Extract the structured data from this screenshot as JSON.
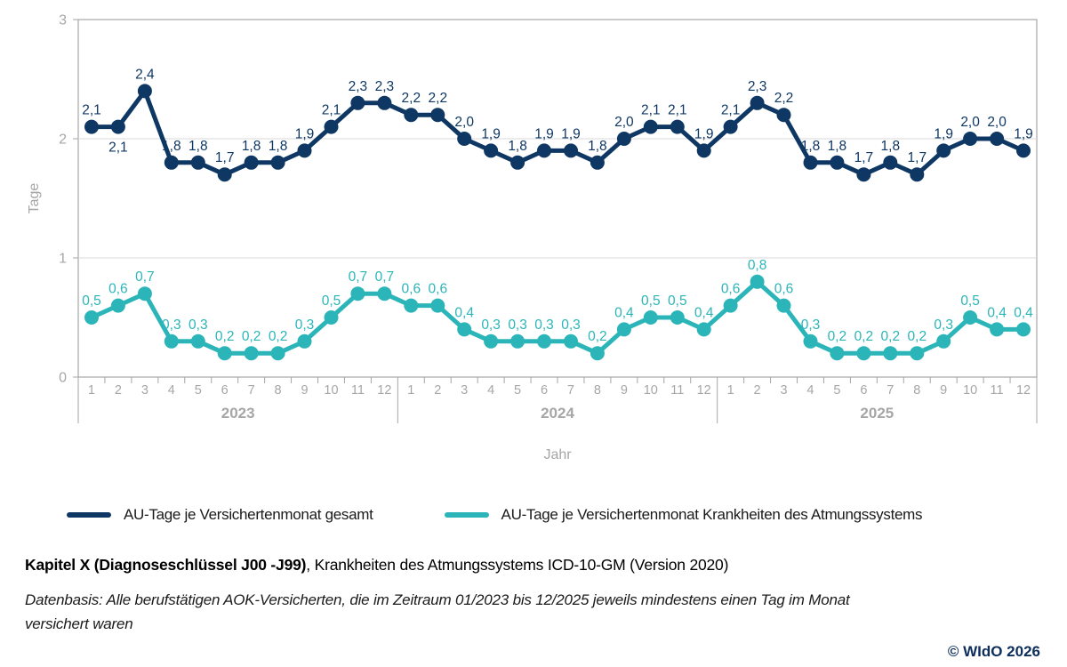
{
  "chart_data": {
    "type": "line",
    "months": [
      "1",
      "2",
      "3",
      "4",
      "5",
      "6",
      "7",
      "8",
      "9",
      "10",
      "11",
      "12"
    ],
    "years": [
      "2023",
      "2024",
      "2025"
    ],
    "ylabel": "Tage",
    "xlabel": "Jahr",
    "ylim": [
      0,
      3
    ],
    "yticks": [
      0,
      1,
      2,
      3
    ],
    "grid": true,
    "legend_position": "bottom",
    "decimal_separator": ",",
    "series": [
      {
        "name": "AU-Tage je Versichertenmonat gesamt",
        "color": "#0F3763",
        "values": [
          2.1,
          2.1,
          2.4,
          1.8,
          1.8,
          1.7,
          1.8,
          1.8,
          1.9,
          2.1,
          2.3,
          2.3,
          2.2,
          2.2,
          2.0,
          1.9,
          1.8,
          1.9,
          1.9,
          1.8,
          2.0,
          2.1,
          2.1,
          1.9,
          2.1,
          2.3,
          2.2,
          1.8,
          1.8,
          1.7,
          1.8,
          1.7,
          1.9,
          2.0,
          2.0,
          1.9
        ],
        "label_below_indices": [
          1
        ]
      },
      {
        "name": "AU-Tage je Versichertenmonat Krankheiten des Atmungssystems",
        "color": "#2BB5B8",
        "values": [
          0.5,
          0.6,
          0.7,
          0.3,
          0.3,
          0.2,
          0.2,
          0.2,
          0.3,
          0.5,
          0.7,
          0.7,
          0.6,
          0.6,
          0.4,
          0.3,
          0.3,
          0.3,
          0.3,
          0.2,
          0.4,
          0.5,
          0.5,
          0.4,
          0.6,
          0.8,
          0.6,
          0.3,
          0.2,
          0.2,
          0.2,
          0.2,
          0.3,
          0.5,
          0.4,
          0.4
        ],
        "label_below_indices": []
      }
    ],
    "axis_color": "#A6A6A6",
    "grid_color": "#D9D9D9"
  },
  "footer": {
    "kapitel_bold": "Kapitel X (Diagnoseschlüssel J00 -J99)",
    "kapitel_rest": ", Krankheiten des Atmungssystems ICD-10-GM (Version 2020)",
    "datenbasis_line1": "Datenbasis: Alle berufstätigen AOK-Versicherten, die im Zeitraum 01/2023 bis 12/2025 jeweils mindestens einen Tag im Monat",
    "datenbasis_line2": "versichert waren",
    "copyright": "© WIdO 2026"
  }
}
